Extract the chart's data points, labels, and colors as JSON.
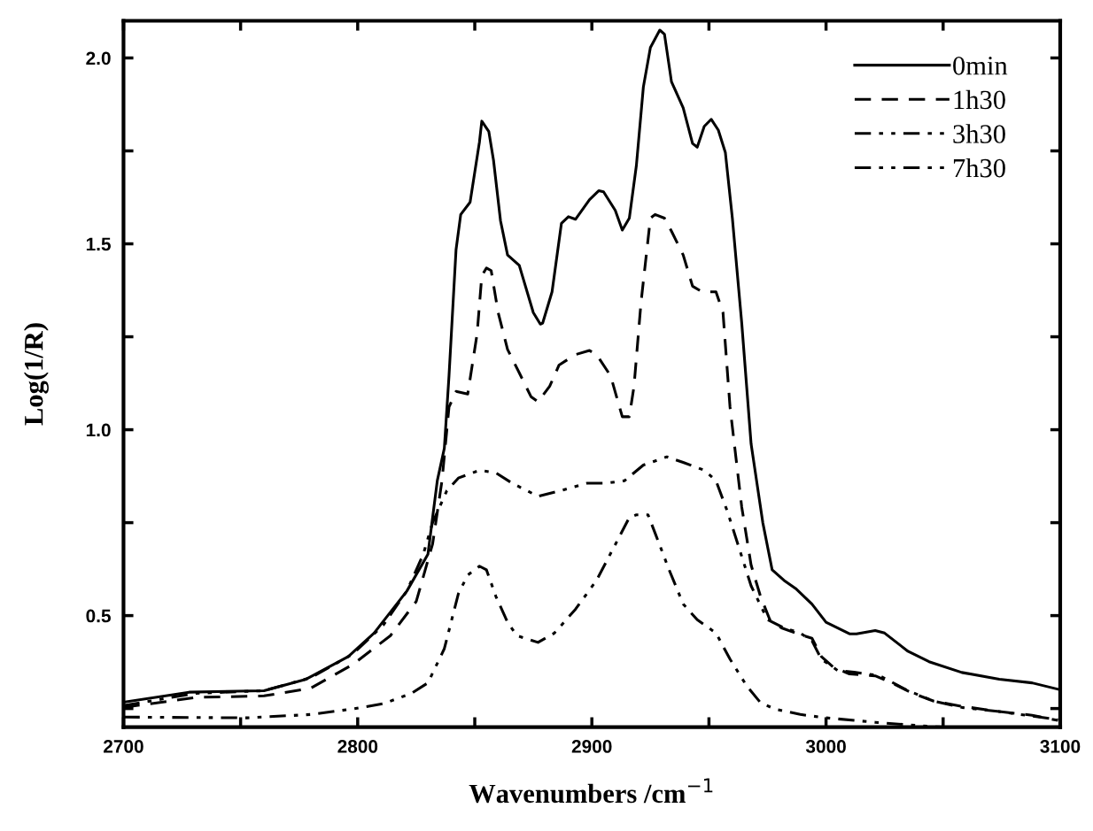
{
  "chart_data": {
    "type": "line",
    "xlabel": "Wavenumbers /cm$^{−1}$",
    "ylabel": "Log(1/R)",
    "xlim": [
      2700,
      3100
    ],
    "ylim": [
      0.2,
      2.1
    ],
    "xticks": [
      2700,
      {
        "value": 2750,
        "label": null
      },
      2800,
      {
        "value": 2850,
        "label": null
      },
      2900,
      {
        "value": 2950,
        "label": null
      },
      3000,
      {
        "value": 3050,
        "label": null
      },
      3100
    ],
    "yticks": [
      {
        "value": 0.25,
        "label": null
      },
      0.5,
      {
        "value": 0.75,
        "label": null
      },
      {
        "value": 1,
        "label": "1.0"
      },
      {
        "value": 1.25,
        "label": null
      },
      1.5,
      {
        "value": 1.75,
        "label": null
      },
      {
        "value": 2,
        "label": "2.0"
      }
    ],
    "legend": "top right",
    "grid": false,
    "series": [
      {
        "name": "0min",
        "color": "#000000",
        "line_style": "solid",
        "x": [
          2700,
          2728,
          2760,
          2778,
          2796,
          2807,
          2821,
          2830,
          2834,
          2837,
          2839,
          2842,
          2844,
          2848,
          2852,
          2853,
          2856,
          2858,
          2861,
          2864,
          2869,
          2875,
          2878,
          2879,
          2883,
          2887,
          2890,
          2893,
          2899,
          2903,
          2905,
          2910,
          2913,
          2916,
          2919,
          2922,
          2925,
          2929,
          2931,
          2934,
          2939,
          2943,
          2945,
          2948,
          2951,
          2954,
          2957,
          2960,
          2964,
          2968,
          2973,
          2977,
          2982,
          2987,
          2994,
          3000,
          3010,
          3013,
          3021,
          3025,
          3035,
          3044,
          3058,
          3074,
          3088,
          3099
        ],
        "values": [
          0.267,
          0.294,
          0.298,
          0.329,
          0.39,
          0.453,
          0.566,
          0.665,
          0.863,
          0.95,
          1.145,
          1.484,
          1.579,
          1.612,
          1.774,
          1.83,
          1.802,
          1.725,
          1.562,
          1.47,
          1.442,
          1.315,
          1.284,
          1.287,
          1.371,
          1.555,
          1.573,
          1.566,
          1.619,
          1.643,
          1.64,
          1.59,
          1.537,
          1.569,
          1.71,
          1.922,
          2.028,
          2.075,
          2.064,
          1.936,
          1.866,
          1.77,
          1.76,
          1.816,
          1.835,
          1.806,
          1.746,
          1.569,
          1.287,
          0.962,
          0.75,
          0.623,
          0.595,
          0.573,
          0.531,
          0.482,
          0.451,
          0.451,
          0.46,
          0.453,
          0.404,
          0.376,
          0.347,
          0.329,
          0.319,
          0.302
        ]
      },
      {
        "name": "1h30",
        "color": "#000000",
        "line_style": "dashed",
        "x": [
          2700,
          2731,
          2760,
          2780,
          2798,
          2814,
          2825,
          2832,
          2836,
          2839,
          2842,
          2847,
          2851,
          2853,
          2855,
          2857,
          2860,
          2864,
          2869,
          2874,
          2877,
          2882,
          2886,
          2893,
          2899,
          2902,
          2908,
          2913,
          2916,
          2918,
          2921,
          2925,
          2927,
          2931,
          2934,
          2939,
          2943,
          2947,
          2953,
          2956,
          2959,
          2964,
          2968,
          2972,
          2976,
          2981,
          2987,
          2994,
          2998,
          3003,
          3010,
          3021,
          3028,
          3037,
          3046,
          3058,
          3074,
          3088,
          3099
        ],
        "values": [
          0.253,
          0.28,
          0.284,
          0.305,
          0.369,
          0.446,
          0.538,
          0.693,
          0.863,
          1.061,
          1.103,
          1.096,
          1.258,
          1.414,
          1.435,
          1.428,
          1.315,
          1.216,
          1.153,
          1.089,
          1.075,
          1.117,
          1.174,
          1.202,
          1.213,
          1.202,
          1.145,
          1.035,
          1.035,
          1.117,
          1.343,
          1.569,
          1.579,
          1.569,
          1.534,
          1.47,
          1.386,
          1.371,
          1.371,
          1.315,
          1.061,
          0.792,
          0.636,
          0.552,
          0.489,
          0.467,
          0.453,
          0.439,
          0.39,
          0.362,
          0.343,
          0.338,
          0.319,
          0.291,
          0.27,
          0.256,
          0.242,
          0.232,
          0.218
        ]
      },
      {
        "name": "3h30",
        "color": "#000000",
        "line_style": "dashdotdot",
        "x": [
          2700,
          2731,
          2760,
          2780,
          2798,
          2811,
          2821,
          2828,
          2832,
          2838,
          2843,
          2852,
          2859,
          2866,
          2877,
          2886,
          2898,
          2906,
          2914,
          2922,
          2932,
          2939,
          2948,
          2953,
          2958,
          2963,
          2968,
          2975,
          2982,
          2989,
          2994,
          2998,
          3005,
          3012,
          3023,
          3035,
          3046,
          3058,
          3074,
          3099
        ],
        "values": [
          0.258,
          0.291,
          0.298,
          0.333,
          0.397,
          0.475,
          0.566,
          0.665,
          0.75,
          0.835,
          0.87,
          0.891,
          0.884,
          0.856,
          0.821,
          0.835,
          0.856,
          0.856,
          0.863,
          0.905,
          0.927,
          0.912,
          0.891,
          0.863,
          0.778,
          0.679,
          0.58,
          0.489,
          0.467,
          0.453,
          0.432,
          0.383,
          0.352,
          0.348,
          0.338,
          0.298,
          0.27,
          0.253,
          0.242,
          0.22
        ]
      },
      {
        "name": "7h30",
        "color": "#000000",
        "line_style": "dashdotdot",
        "x": [
          2700,
          2753,
          2780,
          2798,
          2811,
          2823,
          2830,
          2837,
          2843,
          2847,
          2852,
          2855,
          2859,
          2864,
          2868,
          2877,
          2884,
          2893,
          2902,
          2909,
          2916,
          2919,
          2924,
          2927,
          2933,
          2939,
          2945,
          2953,
          2959,
          2966,
          2972,
          2978,
          2989,
          3000,
          3021,
          3044,
          3050
        ],
        "values": [
          0.227,
          0.225,
          0.234,
          0.249,
          0.263,
          0.291,
          0.319,
          0.411,
          0.559,
          0.609,
          0.633,
          0.623,
          0.552,
          0.482,
          0.446,
          0.428,
          0.453,
          0.517,
          0.595,
          0.679,
          0.764,
          0.771,
          0.771,
          0.722,
          0.623,
          0.531,
          0.489,
          0.453,
          0.383,
          0.312,
          0.266,
          0.249,
          0.234,
          0.225,
          0.213,
          0.202,
          0.2
        ]
      }
    ]
  }
}
